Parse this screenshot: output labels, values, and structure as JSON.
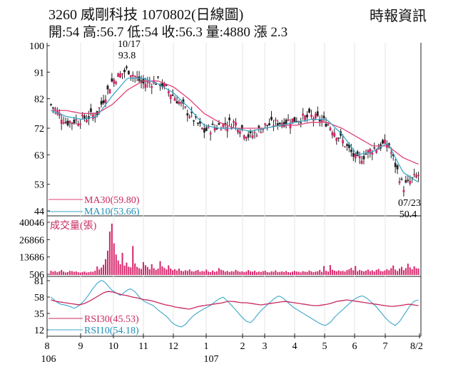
{
  "header": {
    "title": "3260  威剛科技  1070802(日線圖)",
    "stats": "開:54 高:56.7 低:54 收:56.3 量:4880 漲 2.3",
    "source": "時報資訊"
  },
  "chart_data": [
    {
      "type": "candlestick",
      "panel": "price",
      "y_ticks": [
        "100",
        "91",
        "82",
        "72",
        "63",
        "53",
        "44"
      ],
      "y_tick_values": [
        100,
        91,
        82,
        72,
        63,
        53,
        44
      ],
      "ylim": [
        44,
        100
      ],
      "legend": [
        {
          "name": "MA30(59.80)",
          "color": "#e0407a"
        },
        {
          "name": "MA10(53.66)",
          "color": "#3aa7c9"
        }
      ],
      "annotations": [
        {
          "date": "10/17",
          "value": "93.8",
          "label_date": "10/17",
          "label_value": "93.8"
        },
        {
          "date": "07/23",
          "value": "50.4",
          "label_date": "07/23",
          "label_value": "50.4"
        }
      ],
      "x_month_labels": [
        "8",
        "9",
        "10",
        "11",
        "12",
        "1",
        "2",
        "3",
        "4",
        "5",
        "6",
        "7",
        "8/2"
      ],
      "x_year_labels": [
        "106",
        "107"
      ],
      "close_path": {
        "dates": [
          "106/8/1",
          "106/8/15",
          "106/9/1",
          "106/9/15",
          "106/10/1",
          "106/10/17",
          "106/11/1",
          "106/11/15",
          "106/12/1",
          "106/12/15",
          "107/1/1",
          "107/1/15",
          "107/2/1",
          "107/2/15",
          "107/3/1",
          "107/3/15",
          "107/4/1",
          "107/4/15",
          "107/5/1",
          "107/5/15",
          "107/6/1",
          "107/6/15",
          "107/7/1",
          "107/7/23",
          "107/8/2"
        ],
        "close": [
          80,
          74,
          75,
          77,
          88,
          92,
          87,
          88,
          83,
          77,
          71,
          73,
          74,
          69,
          73,
          74,
          75,
          76,
          74,
          68,
          61,
          65,
          67,
          52,
          56.3
        ],
        "ma30": [
          78,
          78,
          77,
          77,
          80,
          85,
          88,
          88,
          86,
          82,
          77,
          74,
          72,
          72,
          72,
          73,
          73,
          74,
          74,
          72,
          69,
          66,
          66,
          62,
          59.8
        ],
        "ma10": [
          78,
          76,
          75,
          76,
          83,
          89,
          89,
          87,
          84,
          79,
          73,
          72,
          72,
          71,
          72,
          73,
          74,
          75,
          75,
          70,
          63,
          64,
          67,
          57,
          53.66
        ]
      }
    },
    {
      "type": "bar",
      "panel": "volume",
      "title": "成交量(張)",
      "y_ticks": [
        "40046",
        "26866",
        "13686",
        "506"
      ],
      "y_tick_values": [
        40046,
        26866,
        13686,
        506
      ],
      "ylim": [
        0,
        40046
      ],
      "bar_color": "#d6246a",
      "daily_volume": [
        3200,
        2500,
        3000,
        2100,
        2800,
        3800,
        2600,
        1900,
        2200,
        3100,
        2900,
        2400,
        2700,
        2000,
        1800,
        2300,
        2600,
        1900,
        2100,
        2500,
        2400,
        3200,
        6500,
        4200,
        5600,
        7800,
        12000,
        18500,
        33000,
        39000,
        24000,
        15500,
        11000,
        8200,
        16800,
        7100,
        9400,
        6300,
        5800,
        22000,
        8800,
        6200,
        5100,
        4600,
        9800,
        7400,
        6100,
        4300,
        8200,
        5200,
        3900,
        4800,
        10500,
        6600,
        5300,
        4200,
        7300,
        4900,
        3700,
        4400,
        3400,
        4800,
        3200,
        2800,
        3600,
        3100,
        4200,
        2900,
        2600,
        3300,
        3800,
        2500,
        3000,
        2700,
        4100,
        2600,
        2200,
        3400,
        2400,
        2800,
        5200,
        4000,
        3500,
        2500,
        3100,
        2300,
        2900,
        2600,
        3900,
        3000,
        2400,
        2800,
        2200,
        2600,
        3700,
        2700,
        2500,
        3200,
        2100,
        2600,
        2300,
        2900,
        3300,
        2200,
        2000,
        2800,
        2500,
        3500,
        2100,
        2400,
        2700,
        2300,
        3000,
        2200,
        1900,
        2500,
        3100,
        2600,
        2400,
        2000,
        2900,
        2500,
        2300,
        3400,
        2700,
        2100,
        2600,
        2800,
        3800,
        2400,
        6800,
        3100,
        2600,
        7500,
        4000,
        3300,
        2800,
        3500,
        2900,
        3100,
        2600,
        3700,
        4300,
        5400,
        3600,
        6800,
        2900,
        3800,
        3200,
        2700,
        3300,
        4100,
        2900,
        3500,
        2600,
        3900,
        4600,
        3000,
        2800,
        3400,
        4400,
        3600,
        5200,
        7200,
        4100,
        3000,
        4800,
        6200,
        3700,
        5200,
        8600,
        5800,
        4300,
        6600,
        5100,
        4880
      ]
    },
    {
      "type": "line",
      "panel": "rsi",
      "y_ticks": [
        "81",
        "58",
        "35",
        "12"
      ],
      "y_tick_values": [
        81,
        58,
        35,
        12
      ],
      "ylim": [
        5,
        85
      ],
      "series": [
        {
          "name": "RSI30(45.53)",
          "color": "#c8285f"
        },
        {
          "name": "RSI10(54.18)",
          "color": "#3aa7c9"
        }
      ],
      "rsi30_path": [
        54,
        52,
        51,
        50,
        49,
        48,
        47,
        49,
        52,
        56,
        60,
        64,
        66,
        65,
        63,
        61,
        60,
        58,
        57,
        55,
        54,
        53,
        51,
        49,
        47,
        46,
        44,
        43,
        42,
        41,
        43,
        45,
        46,
        47,
        48,
        49,
        50,
        52,
        52,
        51,
        50,
        50,
        49,
        48,
        47,
        48,
        49,
        50,
        51,
        52,
        51,
        50,
        49,
        48,
        47,
        46,
        46,
        47,
        48,
        50,
        52,
        53,
        54,
        53,
        52,
        51,
        50,
        49,
        48,
        47,
        46,
        45,
        45,
        46,
        47,
        48,
        47,
        46
      ],
      "rsi10_path": [
        58,
        52,
        48,
        47,
        45,
        42,
        46,
        52,
        60,
        70,
        78,
        82,
        76,
        68,
        64,
        60,
        66,
        70,
        66,
        58,
        52,
        49,
        46,
        40,
        35,
        30,
        22,
        18,
        16,
        20,
        28,
        34,
        38,
        42,
        45,
        50,
        55,
        58,
        52,
        45,
        38,
        30,
        24,
        22,
        30,
        38,
        44,
        50,
        56,
        60,
        56,
        50,
        44,
        40,
        36,
        32,
        28,
        24,
        20,
        18,
        22,
        30,
        36,
        42,
        48,
        54,
        58,
        60,
        56,
        50,
        44,
        36,
        28,
        22,
        18,
        24,
        34,
        44,
        52,
        54
      ]
    }
  ]
}
